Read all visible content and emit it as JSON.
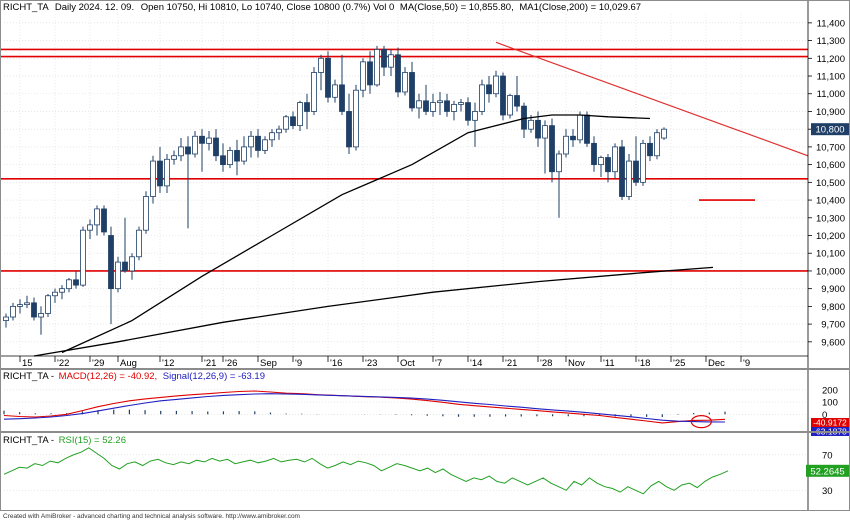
{
  "colors": {
    "background": "#ffffff",
    "grid": "#d9d9d9",
    "bull_candle": "#ffffff",
    "bear_candle": "#1f3f66",
    "candle_outline": "#1f3f66",
    "ma": "#000000",
    "support_line": "#e00000",
    "trend_line": "#e03030",
    "macd": "#e00000",
    "signal": "#2020c0",
    "rsi": "#22a022",
    "price_tag_bg": "#1f3f66",
    "macd_tag_bg": "#e00000",
    "signal_tag_bg": "#2020c0",
    "rsi_tag_bg": "#22a022"
  },
  "header": {
    "ticker": "RICHT_TA",
    "period": "Daily 2024. 12. 09.",
    "ohlc": "Open 10750, Hi 10810, Lo 10740, Close 10800 (0.7%) Vol 0",
    "ma50_label": "MA(Close,50) = 10,855.80,",
    "ma200_label": "MA1(Close,200) = 10,029.67"
  },
  "macd_header": {
    "ticker": "RICHT_TA -",
    "macd_label": "MACD(12,26) = -40.92,",
    "signal_label": "Signal(12,26,9) = -63.19"
  },
  "rsi_header": {
    "ticker": "RICHT_TA -",
    "rsi_label": "RSI(15) = 52.26"
  },
  "footer": "Created with AmiBroker - advanced charting and technical analysis software. http://www.amibroker.com",
  "price_tag": "10,800",
  "macd_tags": [
    "-40.9172",
    "-63.1878"
  ],
  "rsi_tag": "52.2645",
  "chart_data": [
    {
      "type": "candlestick",
      "x_ticks": [
        "15",
        "'22",
        "'29",
        "Aug",
        "'12",
        "'21",
        "'26",
        "Sep",
        "'9",
        "'16",
        "'23",
        "Oct",
        "'7",
        "'14",
        "'21",
        "'28",
        "Nov",
        "'11",
        "'18",
        "'25",
        "Dec",
        "'9"
      ],
      "x_tick_index": [
        2,
        7,
        12,
        16,
        22,
        28,
        31,
        36,
        41,
        46,
        51,
        56,
        61,
        66,
        71,
        76,
        80,
        85,
        90,
        95,
        100,
        105
      ],
      "y_ticks": [
        9600,
        9700,
        9800,
        9900,
        10000,
        10100,
        10200,
        10300,
        10400,
        10500,
        10600,
        10700,
        10800,
        10900,
        11000,
        11100,
        11200,
        11300,
        11400
      ],
      "ylim": [
        9520,
        11450
      ],
      "grid": true,
      "candles": [
        [
          9720,
          9760,
          9680,
          9740
        ],
        [
          9740,
          9820,
          9720,
          9800
        ],
        [
          9800,
          9840,
          9760,
          9810
        ],
        [
          9810,
          9860,
          9790,
          9820
        ],
        [
          9820,
          9850,
          9720,
          9740
        ],
        [
          9740,
          9800,
          9640,
          9760
        ],
        [
          9760,
          9870,
          9740,
          9860
        ],
        [
          9860,
          9900,
          9820,
          9880
        ],
        [
          9880,
          9920,
          9840,
          9900
        ],
        [
          9900,
          9960,
          9880,
          9950
        ],
        [
          9950,
          10000,
          9900,
          9920
        ],
        [
          9920,
          10250,
          9910,
          10230
        ],
        [
          10230,
          10290,
          10180,
          10260
        ],
        [
          10260,
          10370,
          10200,
          10350
        ],
        [
          10350,
          10370,
          10200,
          10220
        ],
        [
          10200,
          10250,
          9700,
          9900
        ],
        [
          9900,
          10080,
          9880,
          10050
        ],
        [
          10050,
          10300,
          9990,
          10000
        ],
        [
          10000,
          10100,
          9950,
          10080
        ],
        [
          10080,
          10250,
          10060,
          10230
        ],
        [
          10230,
          10450,
          10210,
          10420
        ],
        [
          10420,
          10650,
          10380,
          10620
        ],
        [
          10620,
          10700,
          10440,
          10480
        ],
        [
          10480,
          10660,
          10440,
          10630
        ],
        [
          10630,
          10680,
          10600,
          10650
        ],
        [
          10650,
          10750,
          10620,
          10700
        ],
        [
          10700,
          10760,
          10240,
          10660
        ],
        [
          10660,
          10790,
          10640,
          10760
        ],
        [
          10760,
          10800,
          10560,
          10720
        ],
        [
          10720,
          10790,
          10680,
          10750
        ],
        [
          10750,
          10800,
          10620,
          10650
        ],
        [
          10650,
          10720,
          10560,
          10600
        ],
        [
          10600,
          10700,
          10580,
          10680
        ],
        [
          10680,
          10740,
          10540,
          10620
        ],
        [
          10620,
          10760,
          10600,
          10700
        ],
        [
          10700,
          10790,
          10640,
          10760
        ],
        [
          10760,
          10800,
          10640,
          10680
        ],
        [
          10680,
          10760,
          10660,
          10740
        ],
        [
          10740,
          10800,
          10700,
          10780
        ],
        [
          10780,
          10820,
          10740,
          10800
        ],
        [
          10800,
          10880,
          10780,
          10870
        ],
        [
          10870,
          10900,
          10800,
          10820
        ],
        [
          10820,
          10960,
          10790,
          10950
        ],
        [
          10950,
          11000,
          10800,
          10900
        ],
        [
          10900,
          11150,
          10880,
          11120
        ],
        [
          11120,
          11220,
          11020,
          11200
        ],
        [
          11200,
          11240,
          10950,
          10980
        ],
        [
          10980,
          11080,
          10950,
          11050
        ],
        [
          11050,
          11220,
          10880,
          10900
        ],
        [
          10900,
          11000,
          10660,
          10700
        ],
        [
          10700,
          11050,
          10680,
          11020
        ],
        [
          11020,
          11200,
          10980,
          11180
        ],
        [
          11180,
          11240,
          11000,
          11050
        ],
        [
          11050,
          11270,
          11040,
          11250
        ],
        [
          11250,
          11270,
          11100,
          11150
        ],
        [
          11150,
          11250,
          11100,
          11220
        ],
        [
          11220,
          11260,
          10980,
          11010
        ],
        [
          11010,
          11150,
          10990,
          11120
        ],
        [
          11120,
          11180,
          10900,
          10920
        ],
        [
          10920,
          11000,
          10860,
          10960
        ],
        [
          10960,
          11050,
          10880,
          10900
        ],
        [
          10900,
          11000,
          10870,
          10950
        ],
        [
          10950,
          11010,
          10880,
          10960
        ],
        [
          10960,
          11000,
          10870,
          10900
        ],
        [
          10900,
          10960,
          10850,
          10940
        ],
        [
          10940,
          10970,
          10900,
          10950
        ],
        [
          10950,
          10980,
          10820,
          10850
        ],
        [
          10850,
          10950,
          10700,
          10900
        ],
        [
          10900,
          11080,
          10880,
          11050
        ],
        [
          11050,
          11100,
          10950,
          11000
        ],
        [
          11000,
          11130,
          10980,
          11100
        ],
        [
          11100,
          11120,
          10850,
          10880
        ],
        [
          10880,
          11000,
          10860,
          10990
        ],
        [
          10990,
          11100,
          10900,
          10930
        ],
        [
          10930,
          10950,
          10750,
          10800
        ],
        [
          10800,
          10880,
          10780,
          10850
        ],
        [
          10850,
          10900,
          10700,
          10750
        ],
        [
          10750,
          10850,
          10550,
          10820
        ],
        [
          10820,
          10860,
          10500,
          10560
        ],
        [
          10560,
          10680,
          10300,
          10660
        ],
        [
          10660,
          10800,
          10640,
          10760
        ],
        [
          10760,
          10800,
          10700,
          10740
        ],
        [
          10740,
          10900,
          10720,
          10880
        ],
        [
          10880,
          10900,
          10700,
          10720
        ],
        [
          10720,
          10760,
          10560,
          10600
        ],
        [
          10600,
          10650,
          10530,
          10640
        ],
        [
          10640,
          10660,
          10500,
          10560
        ],
        [
          10560,
          10720,
          10520,
          10700
        ],
        [
          10700,
          10740,
          10400,
          10420
        ],
        [
          10420,
          10660,
          10400,
          10620
        ],
        [
          10620,
          10760,
          10480,
          10500
        ],
        [
          10500,
          10740,
          10480,
          10720
        ],
        [
          10720,
          10760,
          10620,
          10650
        ],
        [
          10650,
          10800,
          10630,
          10780
        ],
        [
          10750,
          10810,
          10740,
          10800
        ]
      ],
      "lines": [
        {
          "style": "support",
          "y": 11250
        },
        {
          "style": "support",
          "y": 11210
        },
        {
          "style": "support",
          "y": 10520
        },
        {
          "style": "support",
          "y": 10000
        },
        {
          "style": "support",
          "y": 10400,
          "from_index": 99,
          "to_index": 107
        },
        {
          "style": "trend",
          "from": [
            70,
            11290
          ],
          "to": [
            107,
            10650
          ]
        }
      ],
      "ma50_points": [
        [
          30,
          9540
        ],
        [
          40,
          9720
        ],
        [
          50,
          9970
        ],
        [
          60,
          10200
        ],
        [
          70,
          10430
        ],
        [
          80,
          10600
        ],
        [
          88,
          10780
        ],
        [
          96,
          10860
        ],
        [
          100,
          10880
        ],
        [
          104,
          10880
        ],
        [
          108,
          10870
        ],
        [
          114,
          10860
        ]
      ],
      "ma200_points": [
        [
          48,
          9520
        ],
        [
          60,
          9600
        ],
        [
          75,
          9710
        ],
        [
          90,
          9800
        ],
        [
          105,
          9880
        ],
        [
          120,
          9940
        ],
        [
          135,
          9990
        ],
        [
          145,
          10020
        ]
      ]
    },
    {
      "type": "line",
      "title": "MACD(12,26)",
      "ylim": [
        -120,
        280
      ],
      "y_ticks": [
        0,
        100,
        200
      ],
      "macd": [
        -10,
        -18,
        -22,
        -14,
        0,
        30,
        62,
        88,
        110,
        126,
        138,
        150,
        160,
        168,
        178,
        186,
        190,
        182,
        172,
        168,
        160,
        155,
        150,
        144,
        140,
        134,
        124,
        112,
        98,
        82,
        70,
        60,
        50,
        40,
        30,
        20,
        10,
        0,
        -10,
        -25,
        -40,
        -55,
        -70,
        -60,
        -50,
        -48,
        -41
      ],
      "signal": [
        -40,
        -36,
        -30,
        -22,
        -10,
        6,
        28,
        50,
        72,
        92,
        110,
        122,
        134,
        145,
        154,
        160,
        166,
        168,
        166,
        163,
        158,
        154,
        150,
        146,
        142,
        138,
        132,
        124,
        114,
        102,
        90,
        80,
        68,
        58,
        46,
        36,
        26,
        16,
        4,
        -8,
        -20,
        -34,
        -48,
        -56,
        -60,
        -62,
        -63
      ]
    },
    {
      "type": "line",
      "title": "RSI(15)",
      "ylim": [
        10,
        80
      ],
      "y_ticks": [
        30,
        70
      ],
      "values": [
        48,
        52,
        56,
        55,
        60,
        58,
        63,
        61,
        66,
        70,
        73,
        78,
        72,
        66,
        58,
        54,
        60,
        62,
        58,
        63,
        65,
        61,
        59,
        62,
        60,
        64,
        62,
        66,
        63,
        65,
        60,
        62,
        64,
        61,
        63,
        66,
        62,
        64,
        65,
        62,
        66,
        60,
        55,
        58,
        62,
        59,
        63,
        61,
        58,
        52,
        56,
        60,
        58,
        55,
        52,
        55,
        50,
        54,
        48,
        44,
        40,
        44,
        42,
        46,
        40,
        38,
        44,
        40,
        36,
        40,
        44,
        38,
        34,
        30,
        40,
        36,
        44,
        38,
        34,
        32,
        28,
        34,
        30,
        26,
        35,
        40,
        34,
        30,
        36,
        38,
        33,
        40,
        45,
        48,
        52
      ]
    }
  ]
}
